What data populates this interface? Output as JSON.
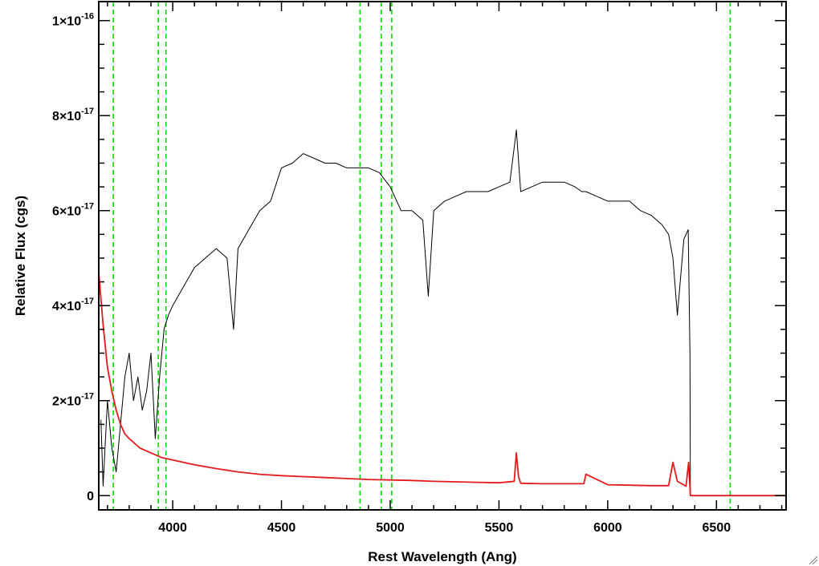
{
  "chart_data": {
    "type": "line",
    "xlabel": "Rest Wavelength (Ang)",
    "ylabel": "Relative Flux (cgs)",
    "xlim": [
      3660,
      6820
    ],
    "ylim": [
      -0.03,
      1.04
    ],
    "y_unit_factor": "1e-16",
    "x_ticks": [
      4000,
      4500,
      5000,
      5500,
      6000,
      6500
    ],
    "x_tick_labels": [
      "4000",
      "4500",
      "5000",
      "5500",
      "6000",
      "6500"
    ],
    "y_ticks": [
      0,
      0.2,
      0.4,
      0.6,
      0.8,
      1.0
    ],
    "y_tick_labels": [
      {
        "mantissa": "0",
        "exponent": ""
      },
      {
        "mantissa": "2×10",
        "exponent": "-17"
      },
      {
        "mantissa": "4×10",
        "exponent": "-17"
      },
      {
        "mantissa": "6×10",
        "exponent": "-17"
      },
      {
        "mantissa": "8×10",
        "exponent": "-17"
      },
      {
        "mantissa": "1×10",
        "exponent": "-16"
      }
    ],
    "grid": false,
    "legend": "none",
    "vertical_lines": [
      3727,
      3934,
      3969,
      4861,
      4959,
      5007,
      6563
    ],
    "series": [
      {
        "color": "#000000",
        "x": [
          3670,
          3680,
          3700,
          3720,
          3740,
          3760,
          3780,
          3800,
          3820,
          3840,
          3860,
          3880,
          3900,
          3920,
          3940,
          3960,
          3980,
          4000,
          4050,
          4100,
          4150,
          4200,
          4250,
          4280,
          4300,
          4350,
          4400,
          4450,
          4500,
          4550,
          4600,
          4650,
          4700,
          4750,
          4800,
          4850,
          4900,
          4950,
          5000,
          5050,
          5100,
          5150,
          5175,
          5200,
          5250,
          5300,
          5350,
          5400,
          5450,
          5500,
          5550,
          5580,
          5600,
          5650,
          5700,
          5750,
          5800,
          5850,
          5880,
          5900,
          5950,
          6000,
          6050,
          6100,
          6150,
          6200,
          6250,
          6280,
          6300,
          6320,
          6350,
          6370,
          6378,
          6380
        ],
        "y": [
          0.16,
          0.02,
          0.2,
          0.1,
          0.05,
          0.15,
          0.25,
          0.3,
          0.2,
          0.25,
          0.18,
          0.22,
          0.3,
          0.12,
          0.25,
          0.35,
          0.38,
          0.4,
          0.44,
          0.48,
          0.5,
          0.52,
          0.5,
          0.35,
          0.52,
          0.56,
          0.6,
          0.62,
          0.69,
          0.7,
          0.72,
          0.71,
          0.7,
          0.7,
          0.69,
          0.69,
          0.69,
          0.68,
          0.65,
          0.6,
          0.6,
          0.58,
          0.42,
          0.6,
          0.62,
          0.63,
          0.64,
          0.64,
          0.64,
          0.65,
          0.66,
          0.77,
          0.64,
          0.65,
          0.66,
          0.66,
          0.66,
          0.65,
          0.64,
          0.64,
          0.63,
          0.62,
          0.62,
          0.62,
          0.6,
          0.59,
          0.57,
          0.55,
          0.5,
          0.38,
          0.54,
          0.56,
          0.3,
          0.0
        ]
      },
      {
        "color": "#e41a1c",
        "x": [
          3660,
          3680,
          3700,
          3720,
          3740,
          3760,
          3780,
          3800,
          3850,
          3900,
          3950,
          4000,
          4100,
          4200,
          4300,
          4400,
          4500,
          4600,
          4700,
          4800,
          4900,
          5000,
          5100,
          5200,
          5300,
          5400,
          5500,
          5570,
          5580,
          5590,
          5600,
          5700,
          5800,
          5890,
          5900,
          6000,
          6100,
          6200,
          6280,
          6300,
          6320,
          6360,
          6372,
          6380,
          6400,
          6820
        ],
        "y": [
          0.47,
          0.36,
          0.27,
          0.22,
          0.18,
          0.15,
          0.13,
          0.12,
          0.1,
          0.09,
          0.08,
          0.075,
          0.065,
          0.057,
          0.05,
          0.045,
          0.042,
          0.04,
          0.038,
          0.036,
          0.034,
          0.033,
          0.032,
          0.03,
          0.029,
          0.028,
          0.027,
          0.03,
          0.09,
          0.04,
          0.026,
          0.025,
          0.025,
          0.025,
          0.045,
          0.023,
          0.022,
          0.021,
          0.021,
          0.07,
          0.03,
          0.02,
          0.07,
          0.0,
          0.0,
          0.0
        ]
      }
    ]
  }
}
